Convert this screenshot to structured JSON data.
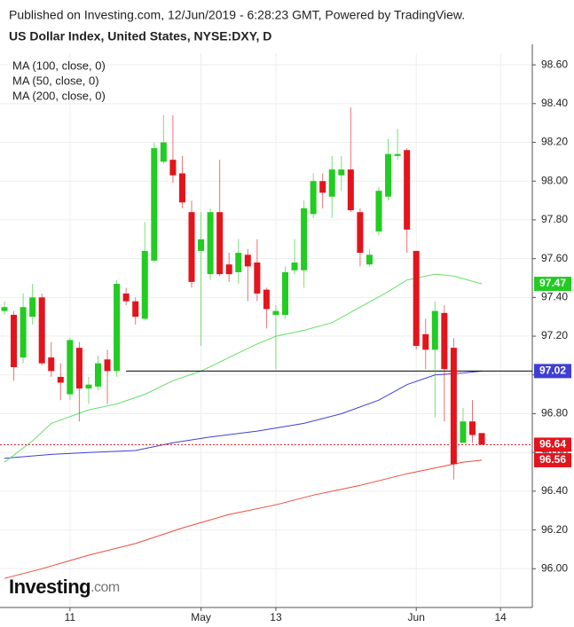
{
  "chart_data": {
    "type": "candlestick",
    "subtitle": "Published on Investing.com, 12/Jun/2019 - 6:28:23 GMT, Powered by TradingView.",
    "title": "US Dollar Index, United States, NYSE:DXY, D",
    "brand": "Investing",
    "brand_suffix": ".com",
    "categories": [
      null,
      null,
      null,
      null,
      null,
      null,
      null,
      "11",
      null,
      null,
      null,
      null,
      null,
      null,
      null,
      null,
      null,
      null,
      null,
      null,
      null,
      "May",
      null,
      null,
      null,
      null,
      null,
      null,
      null,
      "13",
      null,
      null,
      null,
      null,
      null,
      null,
      null,
      null,
      null,
      null,
      null,
      null,
      null,
      null,
      "Jun",
      null,
      null,
      null,
      null,
      null,
      null,
      null,
      null,
      "14"
    ],
    "open": [
      97.33,
      97.31,
      97.09,
      97.3,
      97.4,
      97.09,
      96.99,
      96.9,
      97.14,
      96.93,
      96.94,
      97.08,
      97.02,
      97.42,
      97.38,
      97.29,
      97.59,
      98.1,
      98.11,
      98.04,
      97.84,
      97.64,
      97.52,
      97.84,
      97.57,
      97.53,
      97.62,
      97.58,
      97.44,
      97.31,
      97.31,
      97.54,
      97.54,
      97.83,
      98.0,
      97.92,
      98.03,
      98.06,
      97.84,
      97.57,
      97.74,
      97.92,
      98.13,
      98.16,
      97.64,
      97.21,
      97.13,
      97.32,
      97.14,
      96.65,
      96.76,
      96.7,
      null,
      null
    ],
    "high": [
      97.38,
      97.33,
      97.42,
      97.47,
      97.42,
      97.17,
      97.06,
      97.19,
      97.17,
      96.99,
      97.1,
      97.13,
      97.49,
      97.45,
      97.4,
      97.79,
      98.2,
      98.34,
      98.34,
      98.13,
      97.9,
      97.84,
      97.86,
      98.11,
      97.63,
      97.7,
      97.65,
      97.7,
      97.45,
      97.36,
      97.56,
      97.7,
      97.9,
      98.04,
      98.04,
      98.13,
      98.13,
      98.38,
      97.86,
      97.65,
      97.97,
      98.22,
      98.27,
      98.17,
      97.64,
      97.29,
      97.38,
      97.36,
      97.19,
      96.83,
      96.87,
      96.7,
      null,
      null
    ],
    "low": [
      97.31,
      96.97,
      97.06,
      97.26,
      97.05,
      96.99,
      96.87,
      96.87,
      96.76,
      96.85,
      96.92,
      96.85,
      96.99,
      97.36,
      97.26,
      97.28,
      97.58,
      98.09,
      97.99,
      97.86,
      97.45,
      97.15,
      97.49,
      97.51,
      97.48,
      97.47,
      97.38,
      97.38,
      97.24,
      97.03,
      97.29,
      97.52,
      97.45,
      97.81,
      97.86,
      97.81,
      97.95,
      97.84,
      97.56,
      97.56,
      97.72,
      97.9,
      98.11,
      97.63,
      97.13,
      97.03,
      96.78,
      96.76,
      96.46,
      96.65,
      96.65,
      96.64,
      null,
      null
    ],
    "close": [
      97.35,
      97.04,
      97.35,
      97.4,
      97.06,
      97.02,
      96.96,
      97.18,
      96.93,
      96.95,
      97.06,
      97.02,
      97.47,
      97.38,
      97.3,
      97.64,
      98.17,
      98.2,
      98.03,
      97.89,
      97.48,
      97.7,
      97.84,
      97.52,
      97.52,
      97.63,
      97.56,
      97.42,
      97.34,
      97.33,
      97.53,
      97.58,
      97.86,
      98.0,
      97.94,
      98.06,
      98.06,
      97.85,
      97.63,
      97.62,
      97.95,
      98.14,
      98.14,
      97.75,
      97.15,
      97.13,
      97.33,
      97.03,
      96.54,
      96.76,
      96.69,
      96.64,
      null,
      null
    ],
    "up_color": "#22cc22",
    "down_color": "#e3141c",
    "overlays": [
      {
        "name": "MA (100, close, 0)",
        "color": "#3f3fd6",
        "x": [
          0,
          5,
          9,
          14,
          18,
          22,
          27,
          32,
          36,
          40,
          43,
          46,
          49,
          51
        ],
        "values": [
          96.57,
          96.59,
          96.6,
          96.61,
          96.65,
          96.68,
          96.71,
          96.75,
          96.8,
          96.87,
          96.95,
          97.0,
          97.01,
          97.02
        ]
      },
      {
        "name": "MA (50, close, 0)",
        "color": "#66e066",
        "x": [
          0,
          3,
          5,
          9,
          12,
          15,
          18,
          21,
          24,
          27,
          29,
          32,
          35,
          38,
          41,
          43,
          46,
          48,
          51
        ],
        "values": [
          96.55,
          96.66,
          96.75,
          96.82,
          96.85,
          96.9,
          96.97,
          97.02,
          97.09,
          97.16,
          97.2,
          97.23,
          97.27,
          97.35,
          97.43,
          97.49,
          97.52,
          97.51,
          97.47
        ]
      },
      {
        "name": "MA (200, close, 0)",
        "color": "#ef4a3a",
        "x": [
          0,
          4,
          9,
          14,
          19,
          24,
          29,
          33,
          38,
          43,
          47,
          49,
          51
        ],
        "values": [
          95.95,
          96.0,
          96.07,
          96.13,
          96.21,
          96.28,
          96.33,
          96.38,
          96.43,
          96.49,
          96.53,
          96.55,
          96.56
        ]
      }
    ],
    "hline": {
      "value": 97.02,
      "start_index": 13,
      "color": "#000000"
    },
    "price_labels": [
      {
        "value": 97.47,
        "label": "97.47",
        "color": "#22cc22"
      },
      {
        "value": 97.02,
        "label": "97.02",
        "color": "#3f3fd6"
      },
      {
        "value": 96.64,
        "label": "96.64",
        "color": "#e3141c",
        "line": "dotted"
      },
      {
        "value": 96.56,
        "label": "96.56",
        "color": "#e3141c"
      }
    ],
    "ylim": [
      95.8,
      98.66
    ],
    "yticks": [
      {
        "value": 96.0,
        "label": "96.00"
      },
      {
        "value": 96.2,
        "label": "96.20"
      },
      {
        "value": 96.4,
        "label": "96.40"
      },
      {
        "value": 96.6,
        "label": "96.60"
      },
      {
        "value": 96.8,
        "label": "96.80"
      },
      {
        "value": 97.0,
        "label": "97.00"
      },
      {
        "value": 97.2,
        "label": "97.20"
      },
      {
        "value": 97.4,
        "label": "97.40"
      },
      {
        "value": 97.6,
        "label": "97.60"
      },
      {
        "value": 97.8,
        "label": "97.80"
      },
      {
        "value": 98.0,
        "label": "98.00"
      },
      {
        "value": 98.2,
        "label": "98.20"
      },
      {
        "value": 98.4,
        "label": "98.40"
      },
      {
        "value": 98.6,
        "label": "98.60"
      }
    ],
    "grid": true
  }
}
